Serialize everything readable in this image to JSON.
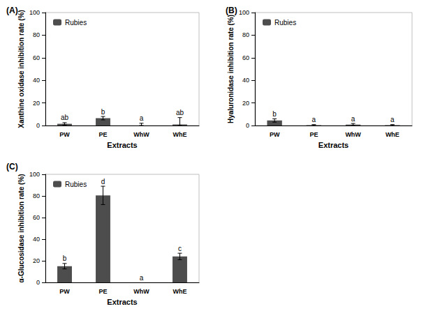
{
  "chart_data": [
    {
      "type": "bar",
      "title": "(A)",
      "xlabel": "Extracts",
      "ylabel": "Xanthine oxidase inhibition rate (%)",
      "categories": [
        "PW",
        "PE",
        "WhW",
        "WhE"
      ],
      "series": [
        {
          "name": "Rubies",
          "color": "#4d4d4d",
          "values": [
            1.5,
            6.5,
            0,
            1
          ],
          "errors": [
            1,
            1.5,
            2,
            6
          ],
          "significance_letters": [
            "ab",
            "b",
            "a",
            "ab"
          ]
        }
      ],
      "ylim": [
        0,
        100
      ],
      "yticks": [
        0,
        20,
        40,
        60,
        80,
        100
      ],
      "grid": false,
      "legend": "upper left"
    },
    {
      "type": "bar",
      "title": "(B)",
      "xlabel": "Extracts",
      "ylabel": "Hyaluronidase inhibition rate (%)",
      "categories": [
        "PW",
        "PE",
        "WhW",
        "WhE"
      ],
      "series": [
        {
          "name": "Rubies",
          "color": "#4d4d4d",
          "values": [
            4.5,
            0.3,
            0.8,
            0.3
          ],
          "errors": [
            1.5,
            0.5,
            1,
            0.5
          ],
          "significance_letters": [
            "b",
            "a",
            "a",
            "a"
          ]
        }
      ],
      "ylim": [
        0,
        100
      ],
      "yticks": [
        0,
        20,
        40,
        60,
        80,
        100
      ],
      "grid": false,
      "legend": "upper left"
    },
    {
      "type": "bar",
      "title": "(C)",
      "xlabel": "Extracts",
      "ylabel": "α-Glucosidase inhibition rate (%)",
      "categories": [
        "PW",
        "PE",
        "WhW",
        "WhE"
      ],
      "series": [
        {
          "name": "Rubies",
          "color": "#4d4d4d",
          "values": [
            15,
            80.5,
            0,
            24
          ],
          "errors": [
            2.5,
            8.5,
            0,
            3
          ],
          "significance_letters": [
            "b",
            "d",
            "a",
            "c"
          ]
        }
      ],
      "ylim": [
        0,
        100
      ],
      "yticks": [
        0,
        20,
        40,
        60,
        80,
        100
      ],
      "grid": false,
      "legend": "upper left"
    }
  ]
}
